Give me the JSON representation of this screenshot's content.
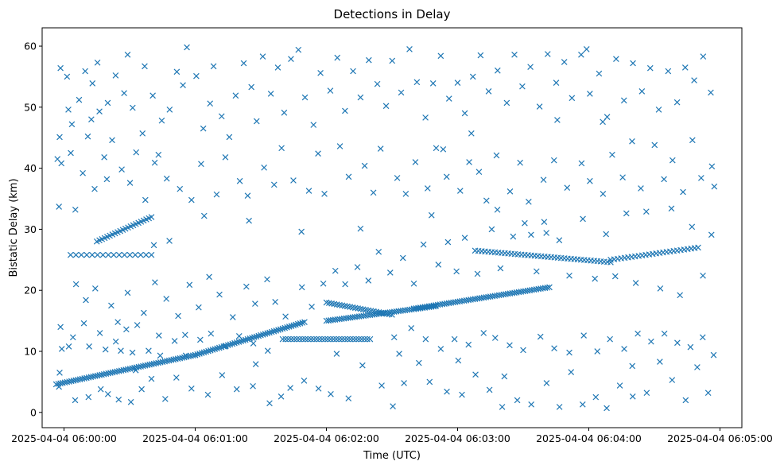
{
  "chart_data": {
    "type": "scatter",
    "title": "Detections in Delay",
    "xlabel": "Time (UTC)",
    "ylabel": "Bistatic Delay (km)",
    "xlim": [
      -10,
      310
    ],
    "ylim": [
      -2.5,
      63
    ],
    "x_units": "seconds after 2025-04-04 06:00:00 UTC",
    "marker": "x",
    "color": "#1f77b4",
    "grid": false,
    "x_ticks": [
      {
        "value": 0,
        "label": "2025-04-04 06:00:00"
      },
      {
        "value": 60,
        "label": "2025-04-04 06:01:00"
      },
      {
        "value": 120,
        "label": "2025-04-04 06:02:00"
      },
      {
        "value": 180,
        "label": "2025-04-04 06:03:00"
      },
      {
        "value": 240,
        "label": "2025-04-04 06:04:00"
      },
      {
        "value": 300,
        "label": "2025-04-04 06:05:00"
      }
    ],
    "y_ticks": [
      {
        "value": 0,
        "label": "0"
      },
      {
        "value": 10,
        "label": "10"
      },
      {
        "value": 20,
        "label": "20"
      },
      {
        "value": 30,
        "label": "30"
      },
      {
        "value": 40,
        "label": "40"
      },
      {
        "value": 50,
        "label": "50"
      },
      {
        "value": 60,
        "label": "60"
      }
    ],
    "tracks": [
      {
        "name": "track-a",
        "x_start": -3.6,
        "x_end": 60,
        "y_start": 4.6,
        "y_end": 9.4,
        "step": 1.0
      },
      {
        "name": "track-b",
        "x_start": 60,
        "x_end": 110,
        "y_start": 9.4,
        "y_end": 14.8,
        "step": 1.0
      },
      {
        "name": "track-c",
        "x_start": 3,
        "x_end": 40,
        "y_start": 25.8,
        "y_end": 25.8,
        "step": 2.5
      },
      {
        "name": "track-d",
        "x_start": 15,
        "x_end": 40,
        "y_start": 28.0,
        "y_end": 32.0,
        "step": 1.2
      },
      {
        "name": "track-e",
        "x_start": 100,
        "x_end": 140,
        "y_start": 12.0,
        "y_end": 12.0,
        "step": 1.3
      },
      {
        "name": "track-f",
        "x_start": 120,
        "x_end": 170,
        "y_start": 15.0,
        "y_end": 17.4,
        "step": 1.0
      },
      {
        "name": "track-g",
        "x_start": 160,
        "x_end": 222,
        "y_start": 17.0,
        "y_end": 20.5,
        "step": 1.0
      },
      {
        "name": "track-h",
        "x_start": 120,
        "x_end": 150,
        "y_start": 18.0,
        "y_end": 16.0,
        "step": 1.2
      },
      {
        "name": "track-i",
        "x_start": 188,
        "x_end": 250,
        "y_start": 26.5,
        "y_end": 24.6,
        "step": 1.5
      },
      {
        "name": "track-j",
        "x_start": 250,
        "x_end": 290,
        "y_start": 25.0,
        "y_end": 27.0,
        "step": 1.6
      }
    ],
    "points": [
      [
        -3.0,
        41.5
      ],
      [
        -2.3,
        33.7
      ],
      [
        2.0,
        49.6
      ],
      [
        -1.2,
        40.8
      ],
      [
        1.4,
        55.0
      ],
      [
        6.9,
        51.2
      ],
      [
        3.6,
        47.2
      ],
      [
        -1.6,
        56.4
      ],
      [
        5.2,
        33.2
      ],
      [
        9.7,
        55.9
      ],
      [
        10.9,
        45.2
      ],
      [
        13.0,
        53.9
      ],
      [
        15.3,
        57.3
      ],
      [
        20.0,
        50.7
      ],
      [
        16.2,
        49.3
      ],
      [
        12.5,
        48.0
      ],
      [
        18.4,
        41.8
      ],
      [
        22.0,
        44.6
      ],
      [
        23.6,
        55.2
      ],
      [
        27.5,
        52.3
      ],
      [
        29.1,
        58.6
      ],
      [
        31.4,
        49.9
      ],
      [
        33.0,
        42.6
      ],
      [
        35.9,
        45.7
      ],
      [
        36.9,
        56.7
      ],
      [
        40.6,
        51.9
      ],
      [
        43.2,
        42.2
      ],
      [
        44.7,
        47.8
      ],
      [
        48.3,
        49.6
      ],
      [
        51.6,
        55.8
      ],
      [
        54.4,
        53.6
      ],
      [
        56.2,
        59.8
      ],
      [
        60.5,
        55.1
      ],
      [
        63.7,
        46.5
      ],
      [
        66.8,
        50.6
      ],
      [
        68.4,
        56.7
      ],
      [
        72.1,
        48.5
      ],
      [
        75.6,
        45.1
      ],
      [
        78.5,
        51.9
      ],
      [
        82.2,
        57.2
      ],
      [
        85.7,
        53.3
      ],
      [
        88.1,
        47.7
      ],
      [
        90.9,
        58.3
      ],
      [
        94.6,
        52.2
      ],
      [
        97.8,
        56.5
      ],
      [
        100.7,
        49.1
      ],
      [
        103.8,
        57.9
      ],
      [
        107.2,
        59.4
      ],
      [
        110.2,
        51.6
      ],
      [
        114.1,
        47.1
      ],
      [
        117.3,
        55.6
      ],
      [
        121.8,
        52.7
      ],
      [
        125.0,
        58.1
      ],
      [
        128.5,
        49.4
      ],
      [
        132.2,
        55.9
      ],
      [
        135.6,
        51.6
      ],
      [
        139.4,
        57.7
      ],
      [
        143.3,
        53.8
      ],
      [
        147.3,
        50.2
      ],
      [
        150.1,
        57.6
      ],
      [
        154.2,
        52.4
      ],
      [
        158.0,
        59.5
      ],
      [
        161.4,
        54.1
      ],
      [
        165.3,
        48.3
      ],
      [
        168.8,
        53.9
      ],
      [
        172.3,
        58.4
      ],
      [
        176.1,
        51.4
      ],
      [
        180.0,
        54.0
      ],
      [
        183.3,
        49.0
      ],
      [
        187.0,
        55.0
      ],
      [
        190.5,
        58.5
      ],
      [
        194.2,
        52.6
      ],
      [
        198.3,
        56.0
      ],
      [
        202.5,
        50.7
      ],
      [
        206.0,
        58.6
      ],
      [
        209.6,
        53.4
      ],
      [
        213.3,
        56.6
      ],
      [
        217.5,
        50.1
      ],
      [
        221.2,
        58.7
      ],
      [
        225.1,
        54.0
      ],
      [
        228.8,
        57.4
      ],
      [
        232.3,
        51.5
      ],
      [
        236.5,
        58.6
      ],
      [
        240.5,
        52.2
      ],
      [
        244.7,
        55.5
      ],
      [
        248.4,
        48.4
      ],
      [
        252.5,
        57.9
      ],
      [
        256.1,
        51.1
      ],
      [
        260.2,
        57.2
      ],
      [
        264.3,
        52.6
      ],
      [
        268.1,
        56.4
      ],
      [
        272.0,
        49.6
      ],
      [
        276.3,
        55.9
      ],
      [
        280.4,
        50.8
      ],
      [
        284.1,
        56.5
      ],
      [
        288.2,
        54.4
      ],
      [
        292.3,
        58.3
      ],
      [
        295.8,
        52.4
      ],
      [
        239.0,
        59.5
      ],
      [
        225.6,
        47.9
      ],
      [
        246.4,
        47.6
      ],
      [
        186.3,
        45.7
      ],
      [
        173.4,
        43.1
      ],
      [
        -2.0,
        45.1
      ],
      [
        3.1,
        42.5
      ],
      [
        8.6,
        39.2
      ],
      [
        14.0,
        36.6
      ],
      [
        19.6,
        38.2
      ],
      [
        26.4,
        39.8
      ],
      [
        30.2,
        37.6
      ],
      [
        37.2,
        34.8
      ],
      [
        41.5,
        40.9
      ],
      [
        47.0,
        38.3
      ],
      [
        53.0,
        36.6
      ],
      [
        58.3,
        34.8
      ],
      [
        62.7,
        40.7
      ],
      [
        69.8,
        35.7
      ],
      [
        73.8,
        41.8
      ],
      [
        80.4,
        37.9
      ],
      [
        84.0,
        35.5
      ],
      [
        91.5,
        40.1
      ],
      [
        96.1,
        37.3
      ],
      [
        99.5,
        43.3
      ],
      [
        104.9,
        38.0
      ],
      [
        112.0,
        36.3
      ],
      [
        116.2,
        42.4
      ],
      [
        119.1,
        35.8
      ],
      [
        126.2,
        43.6
      ],
      [
        130.2,
        38.6
      ],
      [
        137.5,
        40.4
      ],
      [
        141.5,
        36.0
      ],
      [
        144.8,
        43.2
      ],
      [
        152.4,
        38.4
      ],
      [
        156.3,
        35.8
      ],
      [
        160.7,
        41.0
      ],
      [
        166.3,
        36.7
      ],
      [
        170.2,
        43.3
      ],
      [
        175.0,
        38.6
      ],
      [
        181.2,
        36.3
      ],
      [
        185.3,
        41.0
      ],
      [
        189.8,
        39.4
      ],
      [
        193.2,
        34.7
      ],
      [
        197.8,
        42.1
      ],
      [
        204.0,
        36.2
      ],
      [
        208.6,
        40.9
      ],
      [
        212.5,
        34.5
      ],
      [
        219.3,
        38.1
      ],
      [
        224.1,
        41.3
      ],
      [
        230.1,
        36.8
      ],
      [
        236.7,
        40.8
      ],
      [
        240.5,
        37.9
      ],
      [
        246.5,
        35.8
      ],
      [
        250.7,
        42.2
      ],
      [
        255.5,
        38.5
      ],
      [
        259.8,
        44.4
      ],
      [
        263.8,
        36.7
      ],
      [
        270.1,
        43.8
      ],
      [
        274.4,
        38.2
      ],
      [
        278.3,
        41.3
      ],
      [
        283.1,
        36.1
      ],
      [
        287.4,
        44.6
      ],
      [
        291.4,
        38.4
      ],
      [
        296.3,
        40.3
      ],
      [
        297.4,
        37.0
      ],
      [
        213.6,
        29.1
      ],
      [
        219.6,
        31.2
      ],
      [
        5.5,
        21.0
      ],
      [
        10.0,
        18.4
      ],
      [
        14.3,
        20.3
      ],
      [
        21.6,
        17.5
      ],
      [
        24.6,
        14.8
      ],
      [
        29.1,
        19.6
      ],
      [
        36.5,
        16.3
      ],
      [
        41.6,
        21.3
      ],
      [
        46.8,
        18.6
      ],
      [
        52.2,
        15.8
      ],
      [
        57.4,
        20.9
      ],
      [
        61.6,
        17.2
      ],
      [
        66.4,
        22.2
      ],
      [
        71.1,
        19.3
      ],
      [
        77.2,
        15.6
      ],
      [
        83.4,
        20.6
      ],
      [
        87.4,
        17.8
      ],
      [
        92.9,
        21.8
      ],
      [
        96.6,
        18.1
      ],
      [
        101.3,
        15.7
      ],
      [
        108.8,
        20.5
      ],
      [
        113.3,
        17.3
      ],
      [
        118.6,
        21.1
      ],
      [
        124.1,
        23.2
      ],
      [
        128.6,
        21.0
      ],
      [
        134.2,
        23.8
      ],
      [
        139.2,
        21.6
      ],
      [
        143.9,
        26.3
      ],
      [
        149.2,
        22.9
      ],
      [
        155.0,
        25.3
      ],
      [
        160.0,
        21.1
      ],
      [
        164.4,
        27.5
      ],
      [
        171.2,
        24.2
      ],
      [
        175.6,
        27.9
      ],
      [
        179.5,
        23.1
      ],
      [
        183.3,
        28.6
      ],
      [
        189.1,
        22.7
      ],
      [
        195.6,
        30.0
      ],
      [
        199.6,
        23.6
      ],
      [
        205.4,
        28.8
      ],
      [
        210.7,
        31.0
      ],
      [
        216.1,
        23.1
      ],
      [
        220.6,
        29.4
      ],
      [
        226.5,
        28.2
      ],
      [
        231.1,
        22.4
      ],
      [
        237.3,
        31.7
      ],
      [
        242.8,
        21.9
      ],
      [
        247.9,
        29.2
      ],
      [
        252.1,
        22.3
      ],
      [
        257.2,
        32.6
      ],
      [
        261.5,
        21.2
      ],
      [
        266.3,
        32.9
      ],
      [
        272.7,
        20.3
      ],
      [
        277.8,
        33.4
      ],
      [
        281.7,
        19.2
      ],
      [
        287.2,
        30.4
      ],
      [
        292.2,
        22.4
      ],
      [
        296.1,
        29.1
      ],
      [
        198.2,
        33.2
      ],
      [
        168.1,
        32.3
      ],
      [
        135.6,
        30.1
      ],
      [
        108.6,
        29.6
      ],
      [
        84.6,
        31.4
      ],
      [
        64.1,
        32.2
      ],
      [
        41.1,
        27.4
      ],
      [
        48.2,
        28.1
      ],
      [
        -1.6,
        14.0
      ],
      [
        4.1,
        12.3
      ],
      [
        9.1,
        14.6
      ],
      [
        16.4,
        13.0
      ],
      [
        23.7,
        11.6
      ],
      [
        28.5,
        13.6
      ],
      [
        33.5,
        14.3
      ],
      [
        43.4,
        12.6
      ],
      [
        50.6,
        11.7
      ],
      [
        55.4,
        12.7
      ],
      [
        62.3,
        11.9
      ],
      [
        67.2,
        12.9
      ],
      [
        73.7,
        10.8
      ],
      [
        80.1,
        12.5
      ],
      [
        86.6,
        11.3
      ],
      [
        93.2,
        10.1
      ],
      [
        151.0,
        12.3
      ],
      [
        158.8,
        13.8
      ],
      [
        165.4,
        12.0
      ],
      [
        172.3,
        10.4
      ],
      [
        178.6,
        12.0
      ],
      [
        185.0,
        11.1
      ],
      [
        191.9,
        13.0
      ],
      [
        197.2,
        12.2
      ],
      [
        203.8,
        11.0
      ],
      [
        210.0,
        10.2
      ],
      [
        217.9,
        12.4
      ],
      [
        224.2,
        10.5
      ],
      [
        231.1,
        9.8
      ],
      [
        237.7,
        12.6
      ],
      [
        243.9,
        10.0
      ],
      [
        249.7,
        12.0
      ],
      [
        256.2,
        10.4
      ],
      [
        262.4,
        12.9
      ],
      [
        268.5,
        11.6
      ],
      [
        274.6,
        12.9
      ],
      [
        280.5,
        11.4
      ],
      [
        286.5,
        10.7
      ],
      [
        292.1,
        12.3
      ],
      [
        297.1,
        9.4
      ],
      [
        -1.0,
        10.4
      ],
      [
        2.2,
        10.8
      ],
      [
        11.5,
        10.8
      ],
      [
        19.0,
        10.3
      ],
      [
        26.0,
        10.1
      ],
      [
        31.3,
        9.8
      ],
      [
        38.7,
        10.1
      ],
      [
        44.0,
        9.3
      ],
      [
        -2.3,
        4.2
      ],
      [
        -2.0,
        6.5
      ],
      [
        5.1,
        2.0
      ],
      [
        11.2,
        2.5
      ],
      [
        16.8,
        3.8
      ],
      [
        20.1,
        3.0
      ],
      [
        25.0,
        2.1
      ],
      [
        30.6,
        1.7
      ],
      [
        35.5,
        3.8
      ],
      [
        40.0,
        5.5
      ],
      [
        46.3,
        2.2
      ],
      [
        51.4,
        5.7
      ],
      [
        58.3,
        3.9
      ],
      [
        65.8,
        2.9
      ],
      [
        72.3,
        6.1
      ],
      [
        79.0,
        3.8
      ],
      [
        86.4,
        4.3
      ],
      [
        94.0,
        1.5
      ],
      [
        99.3,
        2.6
      ],
      [
        103.5,
        4.0
      ],
      [
        109.8,
        5.2
      ],
      [
        116.4,
        3.9
      ],
      [
        122.0,
        3.0
      ],
      [
        130.1,
        2.3
      ],
      [
        136.5,
        7.7
      ],
      [
        145.3,
        4.4
      ],
      [
        150.4,
        1.0
      ],
      [
        155.5,
        4.8
      ],
      [
        162.3,
        8.1
      ],
      [
        167.2,
        5.0
      ],
      [
        175.1,
        3.4
      ],
      [
        182.0,
        2.9
      ],
      [
        188.2,
        6.2
      ],
      [
        194.6,
        3.7
      ],
      [
        201.4,
        5.9
      ],
      [
        207.3,
        2.0
      ],
      [
        213.7,
        1.3
      ],
      [
        220.7,
        4.8
      ],
      [
        226.6,
        0.9
      ],
      [
        231.9,
        6.6
      ],
      [
        237.2,
        1.3
      ],
      [
        243.2,
        2.5
      ],
      [
        248.2,
        0.7
      ],
      [
        254.2,
        4.4
      ],
      [
        259.9,
        7.6
      ],
      [
        266.5,
        3.2
      ],
      [
        272.5,
        8.3
      ],
      [
        278.1,
        5.3
      ],
      [
        284.3,
        2.0
      ],
      [
        289.6,
        7.4
      ],
      [
        294.6,
        3.2
      ],
      [
        87.7,
        7.9
      ],
      [
        124.7,
        9.6
      ],
      [
        180.3,
        8.5
      ],
      [
        260.1,
        2.6
      ],
      [
        200.4,
        0.9
      ],
      [
        153.3,
        9.6
      ],
      [
        55.7,
        9.3
      ],
      [
        32.8,
        6.9
      ]
    ]
  }
}
